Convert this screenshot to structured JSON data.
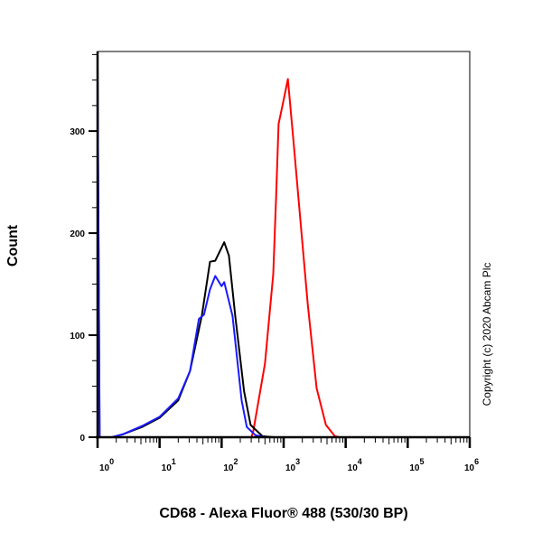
{
  "chart_data": {
    "type": "line",
    "title": "",
    "xlabel": "CD68 - Alexa Fluor® 488 (530/30 BP)",
    "ylabel": "Count",
    "xscale": "log",
    "xlim": [
      1,
      1000000
    ],
    "ylim": [
      0,
      378
    ],
    "grid": false,
    "x_ticks": [
      {
        "base": "10",
        "exp": "0",
        "value": 1
      },
      {
        "base": "10",
        "exp": "1",
        "value": 10
      },
      {
        "base": "10",
        "exp": "2",
        "value": 100
      },
      {
        "base": "10",
        "exp": "3",
        "value": 1000
      },
      {
        "base": "10",
        "exp": "4",
        "value": 10000
      },
      {
        "base": "10",
        "exp": "5",
        "value": 100000
      },
      {
        "base": "10",
        "exp": "6",
        "value": 1000000
      }
    ],
    "y_ticks": [
      {
        "label": "0",
        "value": 0
      },
      {
        "label": "100",
        "value": 100
      },
      {
        "label": "200",
        "value": 200
      },
      {
        "label": "300",
        "value": 300
      }
    ],
    "series": [
      {
        "color": "#ff0000",
        "points": [
          [
            1,
            0
          ],
          [
            302,
            0
          ],
          [
            324,
            6
          ],
          [
            500,
            72
          ],
          [
            680,
            160
          ],
          [
            755,
            234
          ],
          [
            830,
            307
          ],
          [
            980,
            328
          ],
          [
            1170,
            351
          ],
          [
            1470,
            284
          ],
          [
            1860,
            213
          ],
          [
            2450,
            130
          ],
          [
            3400,
            48
          ],
          [
            4800,
            12
          ],
          [
            6700,
            1
          ],
          [
            8000,
            0
          ],
          [
            1000000,
            0
          ]
        ]
      },
      {
        "color": "#000000",
        "points": [
          [
            1,
            364
          ],
          [
            1.08,
            0
          ],
          [
            1.7,
            0
          ],
          [
            2.6,
            3
          ],
          [
            5.2,
            10
          ],
          [
            10,
            19
          ],
          [
            20,
            36
          ],
          [
            31,
            65
          ],
          [
            48,
            119
          ],
          [
            65,
            172
          ],
          [
            79,
            173
          ],
          [
            110,
            191
          ],
          [
            131,
            178
          ],
          [
            166,
            119
          ],
          [
            230,
            45
          ],
          [
            293,
            12
          ],
          [
            455,
            1
          ],
          [
            700,
            0
          ],
          [
            1000000,
            0
          ]
        ]
      },
      {
        "color": "#1a1aff",
        "points": [
          [
            1,
            364
          ],
          [
            1.08,
            0
          ],
          [
            1.7,
            0
          ],
          [
            2.6,
            3
          ],
          [
            5.2,
            11
          ],
          [
            10,
            20
          ],
          [
            20,
            38
          ],
          [
            31,
            65
          ],
          [
            43,
            116
          ],
          [
            52,
            120
          ],
          [
            65,
            145
          ],
          [
            79,
            158
          ],
          [
            100,
            148
          ],
          [
            110,
            152
          ],
          [
            150,
            119
          ],
          [
            210,
            36
          ],
          [
            255,
            10
          ],
          [
            350,
            2
          ],
          [
            500,
            0
          ],
          [
            1000000,
            0
          ]
        ]
      }
    ],
    "annotations": [
      "Copyright (c) 2020 Abcam Plc"
    ]
  }
}
